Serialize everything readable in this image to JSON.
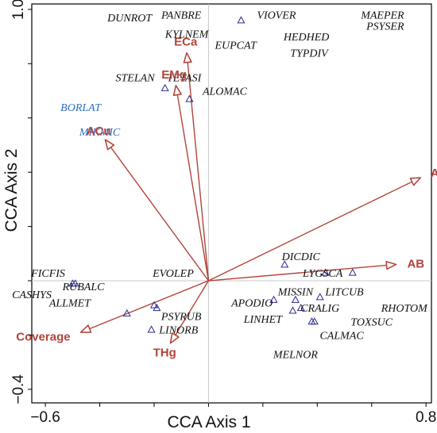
{
  "chart_data": {
    "type": "scatter",
    "title": "",
    "xlabel": "CCA Axis 1",
    "ylabel": "CCA Axis 2",
    "xlim": [
      -0.65,
      0.82
    ],
    "ylim": [
      -0.45,
      1.02
    ],
    "x_ticks": [
      {
        "value": -0.6,
        "label": "−0.6"
      },
      {
        "value": 0.8,
        "label": "0.8"
      }
    ],
    "y_ticks": [
      {
        "value": 1.0,
        "label": "1.0"
      },
      {
        "value": -0.4,
        "label": "−0.4"
      }
    ],
    "colors": {
      "vector": "#b4433a",
      "species_marker": "#2b2b8f",
      "faded_label": "#2a6fc0",
      "frame": "#000000"
    },
    "vectors": [
      {
        "name": "ECa",
        "x": -0.08,
        "y": 0.84
      },
      {
        "name": "EMg",
        "x": -0.12,
        "y": 0.72
      },
      {
        "name": "ACu",
        "x": -0.38,
        "y": 0.52
      },
      {
        "name": "AFe",
        "x": 0.78,
        "y": 0.38
      },
      {
        "name": "AB",
        "x": 0.69,
        "y": 0.06
      },
      {
        "name": "Coverage",
        "x": -0.47,
        "y": -0.19
      },
      {
        "name": "THg",
        "x": -0.14,
        "y": -0.23
      }
    ],
    "species_points": [
      {
        "x": 0.12,
        "y": 0.96
      },
      {
        "x": -0.16,
        "y": 0.71
      },
      {
        "x": -0.07,
        "y": 0.67
      },
      {
        "x": -0.5,
        "y": -0.01
      },
      {
        "x": -0.49,
        "y": -0.01
      },
      {
        "x": -0.2,
        "y": -0.09
      },
      {
        "x": -0.19,
        "y": -0.1
      },
      {
        "x": -0.3,
        "y": -0.12
      },
      {
        "x": -0.21,
        "y": -0.18
      },
      {
        "x": 0.28,
        "y": 0.06
      },
      {
        "x": 0.43,
        "y": 0.03
      },
      {
        "x": 0.53,
        "y": 0.03
      },
      {
        "x": 0.41,
        "y": -0.06
      },
      {
        "x": 0.24,
        "y": -0.07
      },
      {
        "x": 0.32,
        "y": -0.07
      },
      {
        "x": 0.34,
        "y": -0.1
      },
      {
        "x": 0.31,
        "y": -0.11
      },
      {
        "x": 0.39,
        "y": -0.15
      },
      {
        "x": 0.38,
        "y": -0.15
      }
    ],
    "species_labels": [
      {
        "text": "DUNROT",
        "x": -0.29,
        "y": 0.97
      },
      {
        "text": "PANBRE",
        "x": -0.1,
        "y": 0.98
      },
      {
        "text": "VIOVER",
        "x": 0.25,
        "y": 0.98
      },
      {
        "text": "MAEPER",
        "x": 0.64,
        "y": 0.98
      },
      {
        "text": "PSYSER",
        "x": 0.65,
        "y": 0.94
      },
      {
        "text": "KYLNEM",
        "x": -0.08,
        "y": 0.91
      },
      {
        "text": "HEDHED",
        "x": 0.36,
        "y": 0.9
      },
      {
        "text": "EUPCAT",
        "x": 0.1,
        "y": 0.87
      },
      {
        "text": "TYPDIV",
        "x": 0.37,
        "y": 0.84
      },
      {
        "text": "STELAN",
        "x": -0.27,
        "y": 0.75
      },
      {
        "text": "TETASI",
        "x": -0.09,
        "y": 0.75
      },
      {
        "text": "ALOMAC",
        "x": 0.06,
        "y": 0.7
      },
      {
        "text": "BORLAT",
        "x": -0.47,
        "y": 0.64,
        "faded": true
      },
      {
        "text": "MIKMIC",
        "x": -0.4,
        "y": 0.55,
        "faded": true
      },
      {
        "text": "FICFIS",
        "x": -0.59,
        "y": 0.03
      },
      {
        "text": "EVOLEP",
        "x": -0.13,
        "y": 0.03
      },
      {
        "text": "RUBALC",
        "x": -0.46,
        "y": -0.02
      },
      {
        "text": "CASHYS",
        "x": -0.65,
        "y": -0.05
      },
      {
        "text": "ALLMET",
        "x": -0.51,
        "y": -0.08
      },
      {
        "text": "PSYRUB",
        "x": -0.1,
        "y": -0.13
      },
      {
        "text": "LINORB",
        "x": -0.11,
        "y": -0.18
      },
      {
        "text": "DICDIC",
        "x": 0.34,
        "y": 0.09
      },
      {
        "text": "LYGSCA",
        "x": 0.42,
        "y": 0.03
      },
      {
        "text": "MISSIN",
        "x": 0.32,
        "y": -0.04
      },
      {
        "text": "APODIO",
        "x": 0.16,
        "y": -0.08
      },
      {
        "text": "LITCUB",
        "x": 0.5,
        "y": -0.04
      },
      {
        "text": "CRALIG",
        "x": 0.41,
        "y": -0.1
      },
      {
        "text": "RHOTOM",
        "x": 0.72,
        "y": -0.1
      },
      {
        "text": "LINHET",
        "x": 0.2,
        "y": -0.14
      },
      {
        "text": "TOXSUC",
        "x": 0.6,
        "y": -0.15
      },
      {
        "text": "CALMAC",
        "x": 0.49,
        "y": -0.2
      },
      {
        "text": "MELNOR",
        "x": 0.32,
        "y": -0.27
      }
    ]
  }
}
